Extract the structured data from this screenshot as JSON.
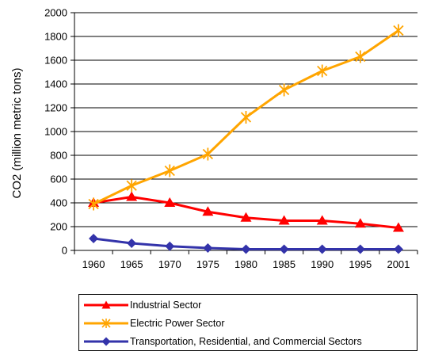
{
  "chart_data": {
    "type": "line",
    "title": "",
    "xlabel": "",
    "ylabel": "CO2 (million metric tons)",
    "categories": [
      "1960",
      "1965",
      "1970",
      "1975",
      "1980",
      "1985",
      "1990",
      "1995",
      "2001"
    ],
    "y_ticks": [
      "0",
      "200",
      "400",
      "600",
      "800",
      "1000",
      "1200",
      "1400",
      "1600",
      "1800",
      "2000"
    ],
    "ylim": [
      0,
      2000
    ],
    "grid": "horizontal",
    "legend_placement": "bottom",
    "series": [
      {
        "name": "Industrial Sector",
        "color": "#ff0000",
        "marker": "triangle",
        "values": [
          400,
          450,
          400,
          325,
          275,
          250,
          250,
          225,
          190
        ]
      },
      {
        "name": "Electric Power Sector",
        "color": "#ffa500",
        "marker": "asterisk",
        "values": [
          390,
          545,
          670,
          810,
          1120,
          1350,
          1510,
          1630,
          1850
        ]
      },
      {
        "name": "Transportation, Residential, and Commercial Sectors",
        "color": "#3333aa",
        "marker": "diamond",
        "values": [
          100,
          60,
          35,
          20,
          10,
          10,
          10,
          10,
          10
        ]
      }
    ]
  }
}
